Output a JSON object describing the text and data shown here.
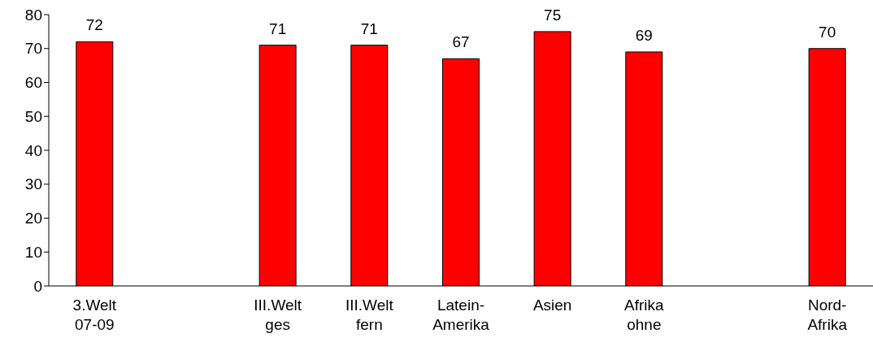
{
  "chart_data": {
    "type": "bar",
    "categories": [
      "3.Welt\n07-09",
      null,
      "III.Welt\nges",
      "III.Welt\nfern",
      "Latein-\nAmerika",
      "Asien",
      "Afrika\nohne",
      null,
      "Nord-\nAfrika"
    ],
    "values": [
      72,
      null,
      71,
      71,
      67,
      75,
      69,
      null,
      70
    ],
    "color": "#ff0000",
    "ylim": [
      0,
      80
    ],
    "yticks": [
      0,
      10,
      20,
      30,
      40,
      50,
      60,
      70,
      80
    ],
    "data_labels": true
  }
}
